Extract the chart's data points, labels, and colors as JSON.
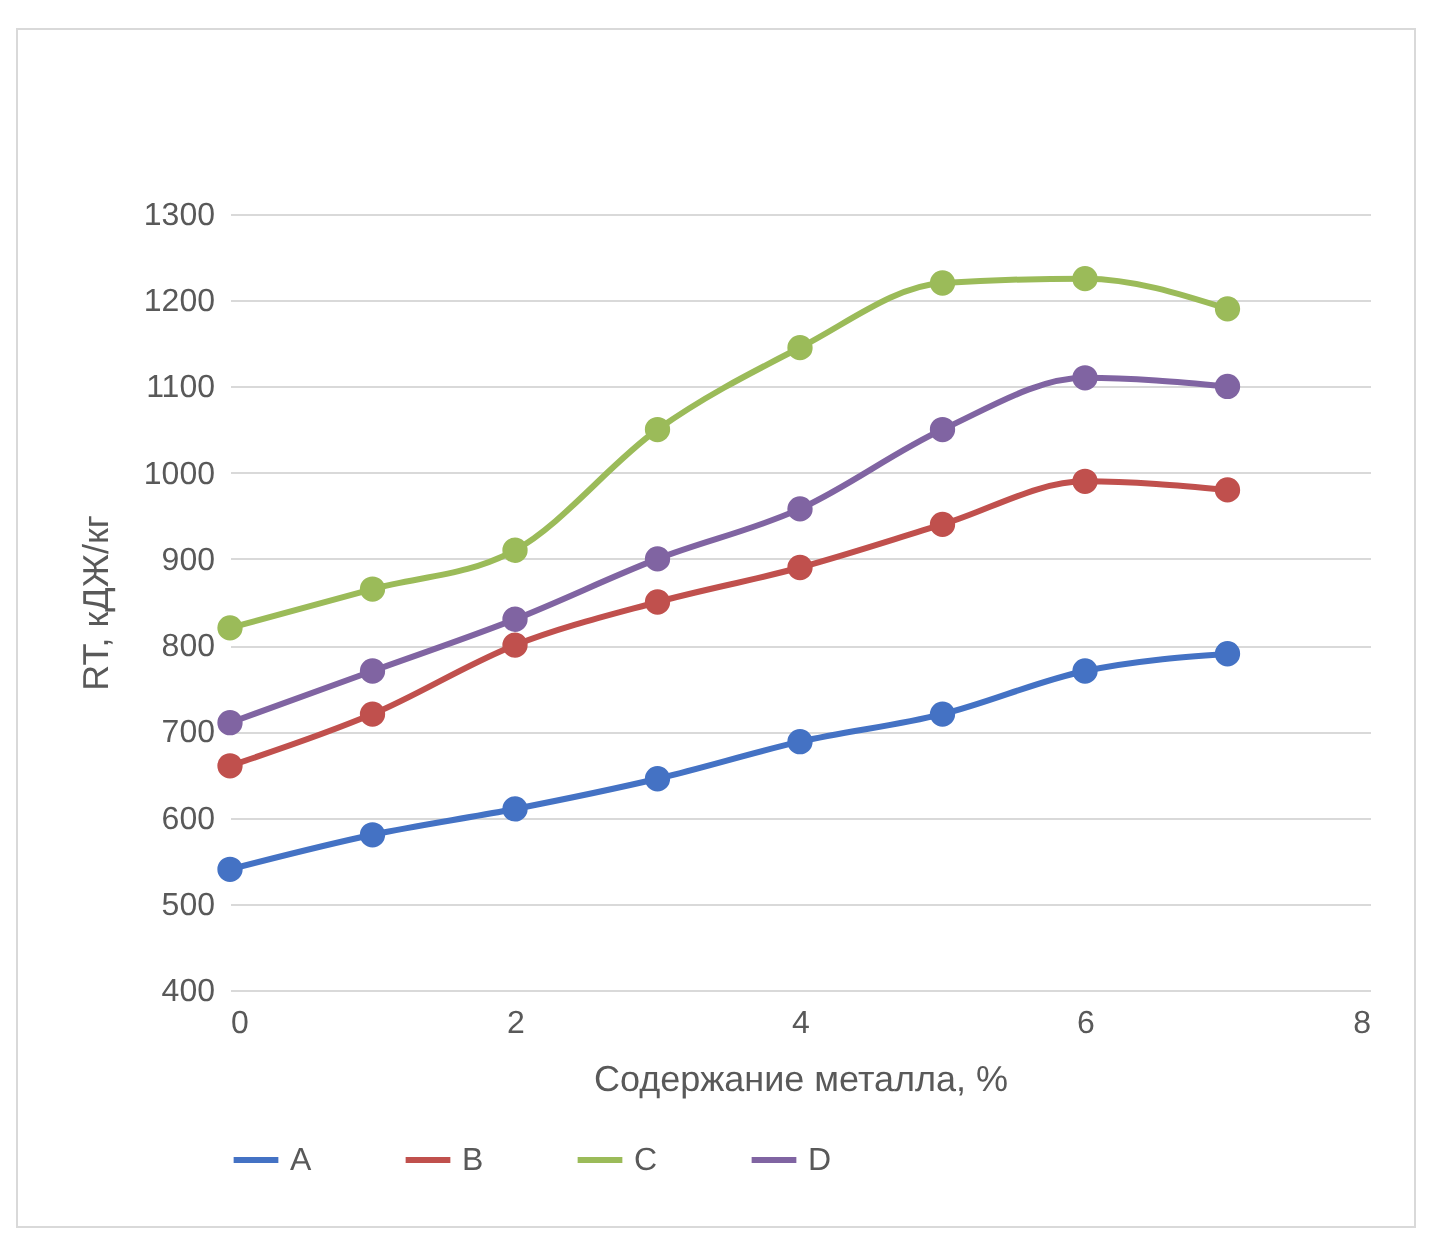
{
  "chart_data": {
    "type": "line",
    "xlabel": "Содержание металла, %",
    "ylabel": "RT, кДЖ/кг",
    "x": [
      0,
      1,
      2,
      3,
      4,
      5,
      6,
      7
    ],
    "series": [
      {
        "name": "A",
        "color": "#4472c4",
        "values": [
          540,
          580,
          610,
          645,
          688,
          720,
          770,
          790
        ]
      },
      {
        "name": "B",
        "color": "#c0504d",
        "values": [
          660,
          720,
          800,
          850,
          890,
          940,
          990,
          980
        ]
      },
      {
        "name": "C",
        "color": "#9bbb59",
        "values": [
          820,
          865,
          910,
          1050,
          1145,
          1220,
          1225,
          1190
        ]
      },
      {
        "name": "D",
        "color": "#8064a2",
        "values": [
          710,
          770,
          830,
          900,
          958,
          1050,
          1110,
          1100
        ]
      }
    ],
    "xlim": [
      0,
      8
    ],
    "xticks": [
      0,
      2,
      4,
      6,
      8
    ],
    "ylim": [
      400,
      1300
    ],
    "yticks": [
      400,
      500,
      600,
      700,
      800,
      900,
      1000,
      1100,
      1200,
      1300
    ],
    "grid": "y",
    "legend": "bottom",
    "marker": "circle",
    "line_style": "solid"
  }
}
